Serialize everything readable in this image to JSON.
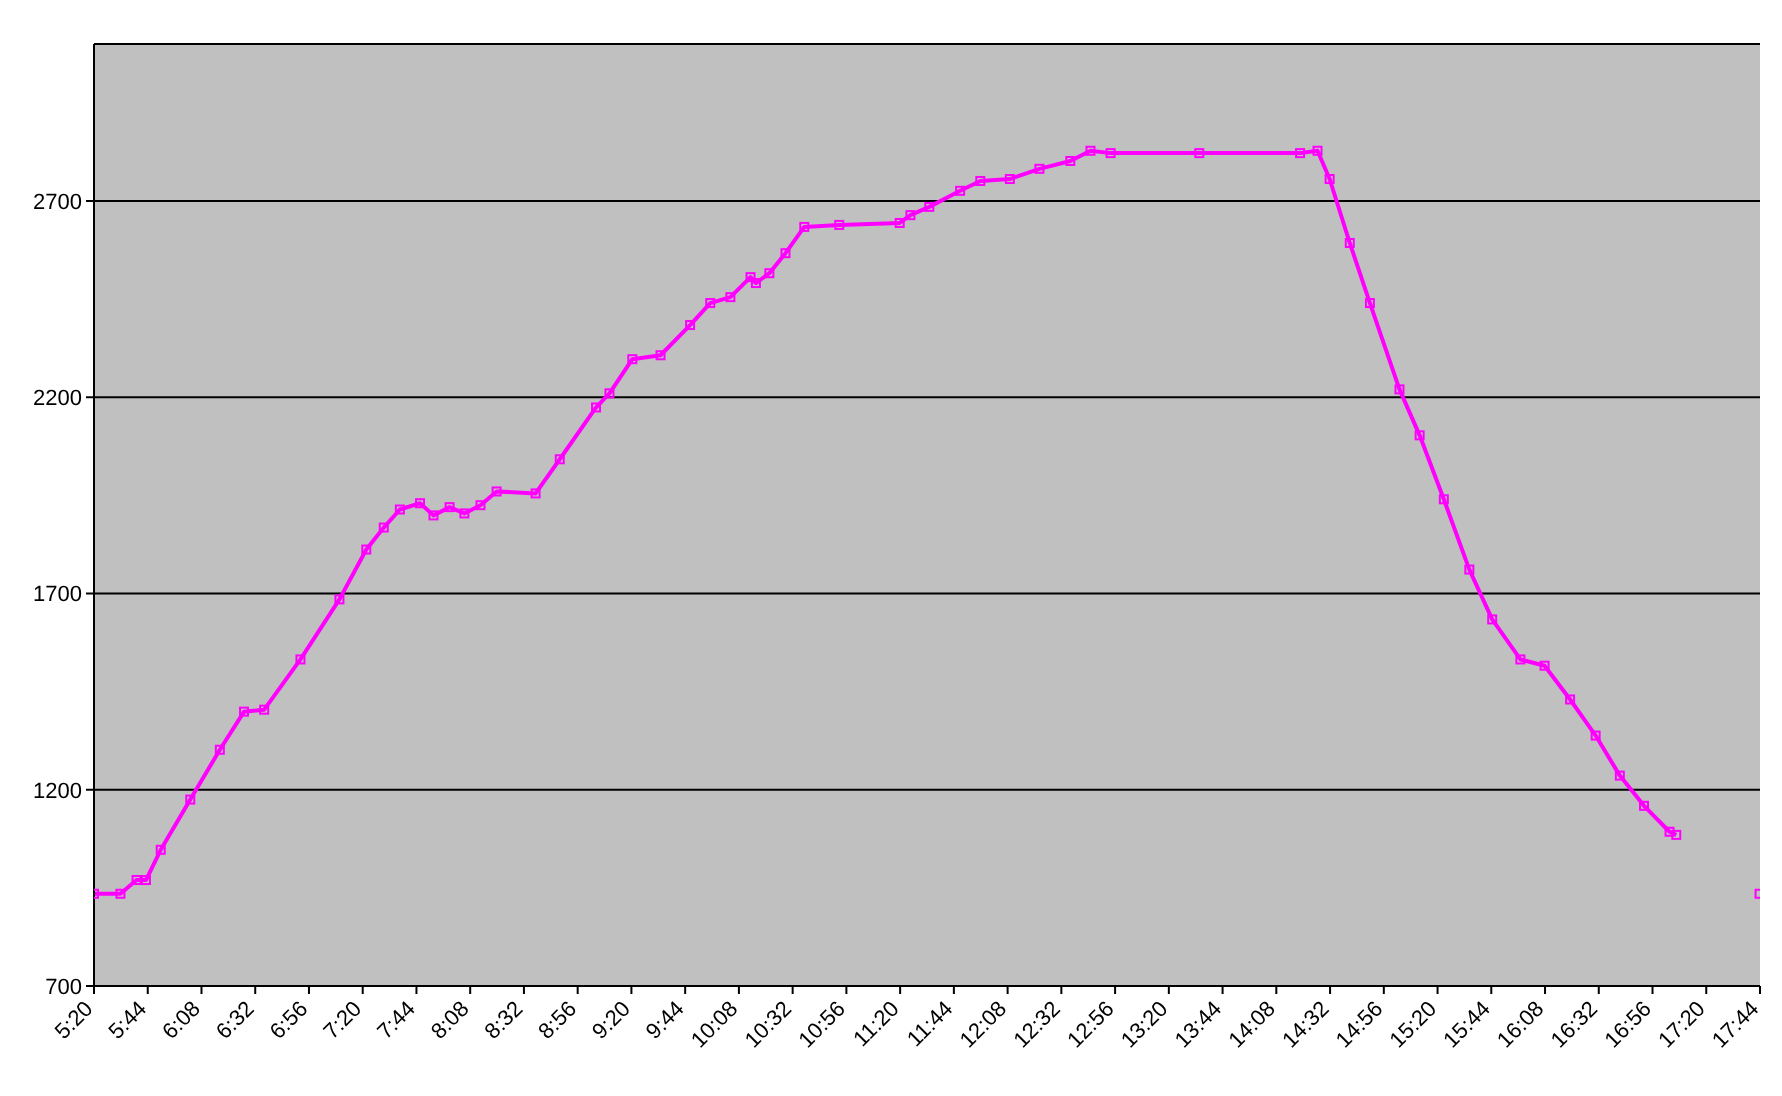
{
  "chart_data": {
    "type": "line",
    "color": "#ff00ff",
    "marker": "square",
    "line_style": "solid",
    "grid": "y",
    "x": [
      5.3333,
      5.53,
      5.65,
      5.72,
      5.83,
      6.05,
      6.27,
      6.45,
      6.6,
      6.87,
      7.16,
      7.36,
      7.49,
      7.61,
      7.76,
      7.86,
      7.98,
      8.09,
      8.21,
      8.33,
      8.62,
      8.8,
      9.07,
      9.17,
      9.34,
      9.55,
      9.77,
      9.92,
      10.07,
      10.22,
      10.26,
      10.36,
      10.48,
      10.62,
      10.88,
      11.33,
      11.41,
      11.55,
      11.78,
      11.93,
      12.15,
      12.37,
      12.6,
      12.75,
      12.9,
      13.56,
      14.31,
      14.44,
      14.53,
      14.68,
      14.83,
      15.05,
      15.2,
      15.38,
      15.57,
      15.74,
      15.95,
      16.13,
      16.32,
      16.51,
      16.69,
      16.87,
      17.06,
      17.11,
      17.4,
      17.73
    ],
    "values": [
      935,
      935,
      970,
      970,
      1047,
      1175,
      1302,
      1399,
      1404,
      1532,
      1685,
      1812,
      1868,
      1914,
      1930,
      1899,
      1920,
      1904,
      1925,
      1960,
      1955,
      2042,
      2174,
      2210,
      2297,
      2307,
      2384,
      2440,
      2455,
      2506,
      2491,
      2516,
      2567,
      2634,
      2639,
      2644,
      2664,
      2685,
      2726,
      2751,
      2756,
      2782,
      2802,
      2828,
      2822,
      2822,
      2822,
      2828,
      2756,
      2593,
      2440,
      2220,
      2103,
      1940,
      1761,
      1634,
      1532,
      1516,
      1430,
      1338,
      1236,
      1159,
      1093,
      1085,
      null,
      935
    ],
    "xlim": [
      5.3333,
      17.7333
    ],
    "xticks": [
      {
        "value": 5.3333,
        "label": "5:20"
      },
      {
        "value": 5.7333,
        "label": "5:44"
      },
      {
        "value": 6.1333,
        "label": "6:08"
      },
      {
        "value": 6.5333,
        "label": "6:32"
      },
      {
        "value": 6.9333,
        "label": "6:56"
      },
      {
        "value": 7.3333,
        "label": "7:20"
      },
      {
        "value": 7.7333,
        "label": "7:44"
      },
      {
        "value": 8.1333,
        "label": "8:08"
      },
      {
        "value": 8.5333,
        "label": "8:32"
      },
      {
        "value": 8.9333,
        "label": "8:56"
      },
      {
        "value": 9.3333,
        "label": "9:20"
      },
      {
        "value": 9.7333,
        "label": "9:44"
      },
      {
        "value": 10.1333,
        "label": "10:08"
      },
      {
        "value": 10.5333,
        "label": "10:32"
      },
      {
        "value": 10.9333,
        "label": "10:56"
      },
      {
        "value": 11.3333,
        "label": "11:20"
      },
      {
        "value": 11.7333,
        "label": "11:44"
      },
      {
        "value": 12.1333,
        "label": "12:08"
      },
      {
        "value": 12.5333,
        "label": "12:32"
      },
      {
        "value": 12.9333,
        "label": "12:56"
      },
      {
        "value": 13.3333,
        "label": "13:20"
      },
      {
        "value": 13.7333,
        "label": "13:44"
      },
      {
        "value": 14.1333,
        "label": "14:08"
      },
      {
        "value": 14.5333,
        "label": "14:32"
      },
      {
        "value": 14.9333,
        "label": "14:56"
      },
      {
        "value": 15.3333,
        "label": "15:20"
      },
      {
        "value": 15.7333,
        "label": "15:44"
      },
      {
        "value": 16.1333,
        "label": "16:08"
      },
      {
        "value": 16.5333,
        "label": "16:32"
      },
      {
        "value": 16.9333,
        "label": "16:56"
      },
      {
        "value": 17.3333,
        "label": "17:20"
      },
      {
        "value": 17.7333,
        "label": "17:44"
      }
    ],
    "ylim": [
      700,
      3100
    ],
    "yticks": [
      700,
      1200,
      1700,
      2200,
      2700
    ]
  }
}
